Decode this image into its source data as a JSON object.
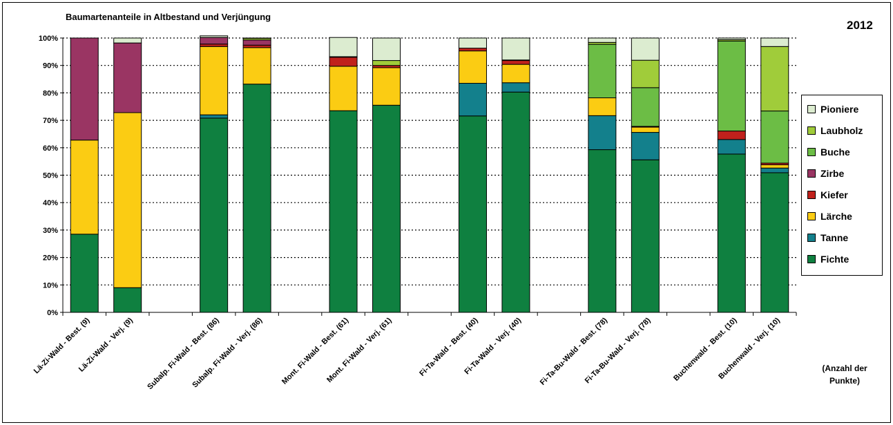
{
  "chart_data": {
    "type": "bar",
    "stacked": true,
    "percent": true,
    "title": "Baumartenanteile in Altbestand und Verjüngung",
    "annotation_year": "2012",
    "annotation_note": "(Anzahl der Punkte)",
    "xlabel": "",
    "ylabel": "",
    "ylim": [
      0,
      100
    ],
    "yticks": [
      "0%",
      "10%",
      "20%",
      "30%",
      "40%",
      "50%",
      "60%",
      "70%",
      "80%",
      "90%",
      "100%"
    ],
    "grid": "horizontal dotted",
    "legend_position": "right",
    "categories": [
      "Lä-Zi-Wald - Best. (9)",
      "Lä-Zi-Wald - Verj. (9)",
      "",
      "Subalp. Fi-Wald - Best. (86)",
      "Subalp. Fi-Wald - Verj. (86)",
      "",
      "Mont. Fi-Wald - Best. (61)",
      "Mont. Fi-Wald - Verj. (61)",
      "",
      "Fi-Ta-Wald - Best. (40)",
      "Fi-Ta-Wald - Verj. (40)",
      "",
      "Fi-Ta-Bu-Wald - Best. (78)",
      "Fi-Ta-Bu-Wald - Verj. (78)",
      "",
      "Buchenwald - Best. (10)",
      "Buchenwald - Verj. (10)"
    ],
    "series": [
      {
        "name": "Fichte",
        "color": "#0f8040",
        "values": [
          28.5,
          9.0,
          null,
          70.8,
          83.2,
          null,
          73.5,
          75.5,
          null,
          71.6,
          80.3,
          null,
          59.3,
          55.6,
          null,
          57.7,
          50.9
        ]
      },
      {
        "name": "Tanne",
        "color": "#13808c",
        "values": [
          0,
          0,
          null,
          1.2,
          0,
          null,
          0,
          0,
          null,
          11.9,
          3.4,
          null,
          12.4,
          10.0,
          null,
          5.3,
          1.7
        ]
      },
      {
        "name": "Lärche",
        "color": "#fbcc13",
        "values": [
          34.3,
          63.8,
          null,
          24.9,
          13.3,
          null,
          16.2,
          13.7,
          null,
          11.8,
          6.7,
          null,
          6.5,
          1.9,
          null,
          0,
          1.2
        ]
      },
      {
        "name": "Kiefer",
        "color": "#c0211c",
        "values": [
          0,
          0,
          null,
          0.9,
          0.9,
          null,
          3.3,
          0.8,
          null,
          1.0,
          1.4,
          null,
          0,
          0.3,
          null,
          3.1,
          0.6
        ]
      },
      {
        "name": "Zirbe",
        "color": "#9a3563",
        "values": [
          37.2,
          25.4,
          null,
          2.4,
          1.9,
          null,
          0.2,
          0,
          null,
          0,
          0,
          null,
          0,
          0,
          null,
          0,
          0
        ]
      },
      {
        "name": "Buche",
        "color": "#6cbd45",
        "values": [
          0,
          0,
          null,
          0,
          0,
          null,
          0,
          0,
          null,
          0,
          0,
          null,
          19.5,
          14.1,
          null,
          32.8,
          19.0
        ]
      },
      {
        "name": "Laubholz",
        "color": "#a0cc3a",
        "values": [
          0,
          0,
          null,
          0,
          0.6,
          null,
          0,
          1.8,
          null,
          0,
          0.2,
          null,
          0.7,
          10.0,
          null,
          0.5,
          23.5
        ]
      },
      {
        "name": "Pioniere",
        "color": "#dcecd0",
        "values": [
          0,
          1.8,
          null,
          0.6,
          0.1,
          null,
          7.0,
          8.2,
          null,
          3.7,
          8.0,
          null,
          1.6,
          8.1,
          null,
          0.6,
          3.1
        ]
      }
    ]
  }
}
